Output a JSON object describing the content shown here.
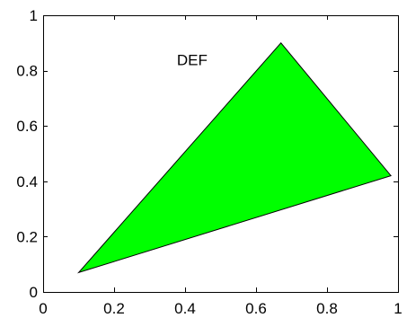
{
  "chart_data": {
    "type": "area",
    "title": "",
    "xlabel": "",
    "ylabel": "",
    "xlim": [
      0,
      1
    ],
    "ylim": [
      0,
      1
    ],
    "grid": false,
    "x_ticks": [
      0,
      0.2,
      0.4,
      0.6,
      0.8,
      1
    ],
    "y_ticks": [
      0,
      0.2,
      0.4,
      0.6,
      0.8,
      1
    ],
    "x_tick_labels": [
      "0",
      "0.2",
      "0.4",
      "0.6",
      "0.8",
      "1"
    ],
    "y_tick_labels": [
      "0",
      "0.2",
      "0.4",
      "0.6",
      "0.8",
      "1"
    ],
    "series": [
      {
        "x": [
          0.1,
          0.67,
          0.98
        ],
        "y": [
          0.07,
          0.9,
          0.42
        ],
        "fill_color": "#00ff00",
        "edge_color": "#000000"
      }
    ],
    "annotations": [
      {
        "text": "DEF",
        "x": 0.42,
        "y": 0.82
      }
    ]
  }
}
